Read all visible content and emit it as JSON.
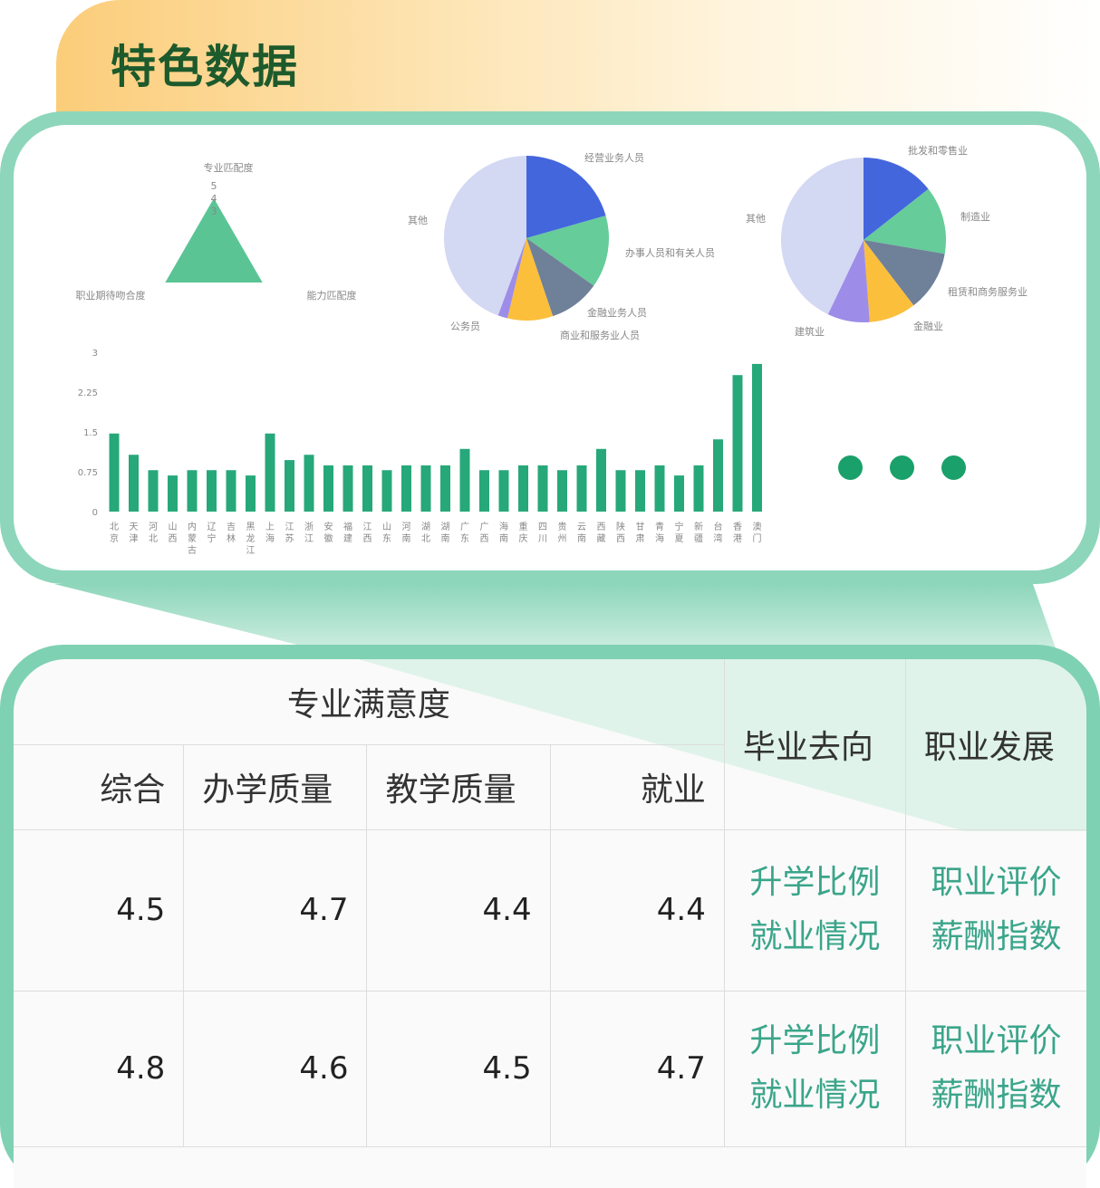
{
  "header": {
    "title": "特色数据"
  },
  "chart_data": [
    {
      "type": "radar",
      "axes": [
        "专业匹配度",
        "能力匹配度",
        "职业期待吻合度"
      ],
      "ticks": [
        3,
        4,
        5
      ],
      "values": [
        4,
        4,
        4
      ],
      "color": "#5bc495"
    },
    {
      "type": "pie",
      "labels": [
        "经营业务人员",
        "办事人员和有关人员",
        "金融业务人员",
        "商业和服务业人员",
        "公务员",
        "其他"
      ],
      "values": [
        20.6,
        14.2,
        10.0,
        8.9,
        1.9,
        44.4
      ],
      "colors": [
        "#4466dd",
        "#66cc99",
        "#6f8099",
        "#fbbf3c",
        "#9d8de8",
        "#d3d8f3"
      ]
    },
    {
      "type": "pie",
      "labels": [
        "批发和零售业",
        "制造业",
        "租赁和商务服务业",
        "金融业",
        "建筑业",
        "其他"
      ],
      "values": [
        14.4,
        13.3,
        11.9,
        9.2,
        8.3,
        42.9
      ],
      "colors": [
        "#4466dd",
        "#66cc99",
        "#6f8099",
        "#fbbf3c",
        "#9d8de8",
        "#d3d8f3"
      ]
    },
    {
      "type": "bar",
      "categories": [
        "北京",
        "天津",
        "河北",
        "山西",
        "内蒙古",
        "辽宁",
        "吉林",
        "黑龙江",
        "上海",
        "江苏",
        "浙江",
        "安徽",
        "福建",
        "江西",
        "山东",
        "河南",
        "湖北",
        "湖南",
        "广东",
        "广西",
        "海南",
        "重庆",
        "四川",
        "贵州",
        "云南",
        "西藏",
        "陕西",
        "甘肃",
        "青海",
        "宁夏",
        "新疆",
        "台湾",
        "香港",
        "澳门"
      ],
      "values": [
        1.47,
        1.07,
        0.78,
        0.68,
        0.78,
        0.78,
        0.78,
        0.68,
        1.47,
        0.97,
        1.07,
        0.87,
        0.87,
        0.87,
        0.78,
        0.87,
        0.87,
        0.87,
        1.18,
        0.78,
        0.78,
        0.87,
        0.87,
        0.78,
        0.87,
        1.18,
        0.78,
        0.78,
        0.87,
        0.68,
        0.87,
        1.36,
        2.57,
        2.78
      ],
      "yticks": [
        "0",
        "0.75",
        "1.5",
        "2.25",
        "3"
      ],
      "ylim": [
        0,
        3
      ],
      "color": "#27a87a"
    }
  ],
  "table": {
    "group_header": "专业满意度",
    "sub_headers": [
      "综合",
      "办学质量",
      "教学质量",
      "就业"
    ],
    "col_dest": "毕业去向",
    "col_career": "职业发展",
    "rows": [
      {
        "overall": "4.5",
        "school": "4.7",
        "teaching": "4.4",
        "employment": "4.4",
        "dest_links": [
          "升学比例",
          "就业情况"
        ],
        "career_links": [
          "职业评价",
          "薪酬指数"
        ]
      },
      {
        "overall": "4.8",
        "school": "4.6",
        "teaching": "4.5",
        "employment": "4.7",
        "dest_links": [
          "升学比例",
          "就业情况"
        ],
        "career_links": [
          "职业评价",
          "薪酬指数"
        ]
      }
    ]
  },
  "more_icon": "ellipsis-dots",
  "accent": "#8dd6bb"
}
